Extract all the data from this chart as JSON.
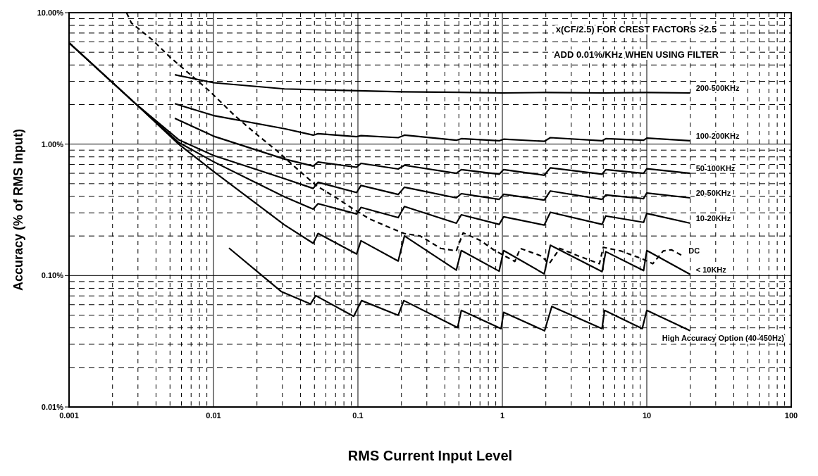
{
  "chart_data": {
    "type": "line",
    "xlabel": "RMS Current Input Level",
    "ylabel": "Accuracy (% of RMS Input)",
    "annotations": [
      "x(CF/2.5) FOR CREST FACTORS >2.5",
      "ADD 0.01%/KHz WHEN USING FILTER"
    ],
    "log": "xy",
    "grid": true,
    "marker": "none",
    "line_style": "solid",
    "xlim": [
      0.001,
      100
    ],
    "xticks": [
      0.001,
      0.01,
      0.1,
      1,
      10,
      100
    ],
    "ylim": [
      0.01,
      10
    ],
    "yticks": [
      {
        "value": 0.01,
        "label": "0.01%"
      },
      {
        "value": 0.1,
        "label": "0.10%"
      },
      {
        "value": 1,
        "label": "1.00%"
      },
      {
        "value": 10,
        "label": "10.00%"
      }
    ],
    "series": [
      {
        "name": "200-500KHz",
        "color": "#000000",
        "x": [
          0.0054,
          0.01,
          0.031,
          0.1,
          0.2,
          0.5,
          1,
          2,
          5,
          10,
          20
        ],
        "values": [
          3.37,
          2.93,
          2.63,
          2.55,
          2.5,
          2.48,
          2.45,
          2.47,
          2.45,
          2.47,
          2.45
        ]
      },
      {
        "name": "100-200KHz",
        "color": "#000000",
        "x": [
          0.0054,
          0.01,
          0.031,
          0.049,
          0.053,
          0.098,
          0.105,
          0.19,
          0.21,
          0.48,
          0.52,
          0.95,
          1.02,
          1.95,
          2.15,
          4.9,
          5.2,
          9.5,
          10,
          20
        ],
        "values": [
          2.03,
          1.65,
          1.31,
          1.17,
          1.2,
          1.14,
          1.16,
          1.12,
          1.17,
          1.07,
          1.1,
          1.06,
          1.09,
          1.05,
          1.12,
          1.06,
          1.1,
          1.07,
          1.11,
          1.06
        ]
      },
      {
        "name": "50-100KHz",
        "color": "#000000",
        "x": [
          0.0054,
          0.01,
          0.031,
          0.049,
          0.053,
          0.098,
          0.105,
          0.19,
          0.21,
          0.48,
          0.52,
          0.95,
          1.02,
          1.95,
          2.15,
          4.9,
          5.2,
          9.5,
          10,
          20
        ],
        "values": [
          1.57,
          1.15,
          0.77,
          0.68,
          0.73,
          0.667,
          0.714,
          0.647,
          0.69,
          0.6,
          0.64,
          0.59,
          0.64,
          0.58,
          0.66,
          0.59,
          0.64,
          0.6,
          0.65,
          0.6
        ]
      },
      {
        "name": "20-50KHz",
        "color": "#000000",
        "x": [
          0.001,
          0.00286,
          0.00574,
          0.01,
          0.031,
          0.049,
          0.053,
          0.098,
          0.105,
          0.19,
          0.21,
          0.48,
          0.52,
          0.95,
          1.02,
          1.95,
          2.15,
          4.9,
          5.2,
          9.5,
          10,
          20
        ],
        "values": [
          5.9,
          2.05,
          1.08,
          0.82,
          0.546,
          0.46,
          0.512,
          0.428,
          0.485,
          0.414,
          0.47,
          0.39,
          0.42,
          0.38,
          0.415,
          0.375,
          0.44,
          0.38,
          0.41,
          0.385,
          0.425,
          0.39
        ]
      },
      {
        "name": "10-20KHz",
        "color": "#000000",
        "x": [
          0.001,
          0.00286,
          0.00574,
          0.01,
          0.031,
          0.049,
          0.053,
          0.098,
          0.105,
          0.19,
          0.21,
          0.48,
          0.52,
          0.95,
          1.02,
          1.95,
          2.15,
          4.9,
          5.2,
          9.5,
          10,
          20
        ],
        "values": [
          5.9,
          2.05,
          1.03,
          0.735,
          0.397,
          0.32,
          0.352,
          0.294,
          0.33,
          0.276,
          0.335,
          0.25,
          0.29,
          0.245,
          0.28,
          0.242,
          0.303,
          0.245,
          0.284,
          0.254,
          0.297,
          0.25
        ]
      },
      {
        "name": "DC",
        "color": "#000000",
        "line_style": "dashed",
        "x": [
          0.0025,
          0.0027,
          0.00378,
          0.00499,
          0.00685,
          0.0094,
          0.014,
          0.02,
          0.0275,
          0.0378,
          0.052,
          0.0714,
          0.0905,
          0.12,
          0.164,
          0.209,
          0.27,
          0.374,
          0.48,
          0.535,
          0.704,
          0.87,
          1.22,
          1.33,
          1.86,
          2.11,
          2.5,
          3.36,
          4.7,
          5.0,
          6.6,
          9.3,
          11,
          13,
          14.8,
          17.8
        ],
        "values": [
          10,
          8.36,
          6.2,
          4.6,
          3.41,
          2.53,
          1.65,
          1.18,
          0.89,
          0.65,
          0.48,
          0.388,
          0.327,
          0.27,
          0.233,
          0.209,
          0.2,
          0.161,
          0.154,
          0.211,
          0.185,
          0.157,
          0.128,
          0.161,
          0.141,
          0.123,
          0.161,
          0.141,
          0.123,
          0.164,
          0.154,
          0.134,
          0.123,
          0.154,
          0.157,
          0.141
        ]
      },
      {
        "name": "< 10KHz",
        "color": "#000000",
        "x": [
          0.001,
          0.00286,
          0.00574,
          0.01,
          0.031,
          0.049,
          0.053,
          0.098,
          0.105,
          0.19,
          0.21,
          0.48,
          0.52,
          0.95,
          1.02,
          1.95,
          2.15,
          4.9,
          5.2,
          9.5,
          10,
          20
        ],
        "values": [
          5.9,
          2.05,
          1.0,
          0.62,
          0.243,
          0.176,
          0.209,
          0.146,
          0.184,
          0.129,
          0.2,
          0.11,
          0.155,
          0.108,
          0.155,
          0.103,
          0.17,
          0.107,
          0.152,
          0.109,
          0.155,
          0.102
        ]
      },
      {
        "name": "High Accuracy Option (40-450Hz)",
        "color": "#000000",
        "x": [
          0.0128,
          0.0217,
          0.0296,
          0.047,
          0.051,
          0.0935,
          0.106,
          0.19,
          0.208,
          0.49,
          0.52,
          0.98,
          1.02,
          1.96,
          2.2,
          4.9,
          5.1,
          9.3,
          10,
          20
        ],
        "values": [
          0.162,
          0.1,
          0.0753,
          0.0608,
          0.0703,
          0.049,
          0.0645,
          0.0499,
          0.0645,
          0.0402,
          0.0543,
          0.0395,
          0.0525,
          0.038,
          0.0582,
          0.0395,
          0.0543,
          0.0395,
          0.0543,
          0.038
        ]
      }
    ]
  }
}
